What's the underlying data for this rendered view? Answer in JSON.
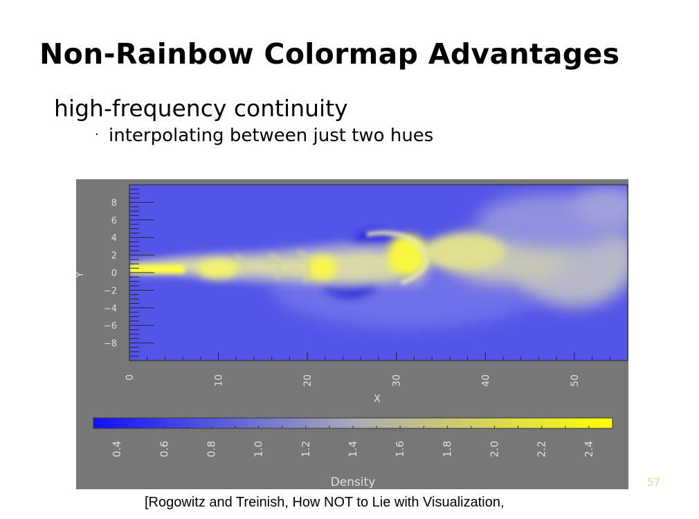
{
  "slide": {
    "title": "Non-Rainbow Colormap Advantages",
    "subtitle": "high-frequency continuity",
    "bullet": "interpolating between just two hues",
    "page_number": "57",
    "citation": "[Rogowitz and Treinish, How NOT to Lie with Visualization,"
  },
  "colors": {
    "figure_background": "#777777",
    "field_low": "#5454e8",
    "field_high": "#ffff30",
    "colormap_start": "#1010ff",
    "colormap_end": "#ffff00"
  },
  "chart_data": {
    "type": "heatmap",
    "xlabel": "X",
    "ylabel": "Y",
    "colorbar_label": "Density",
    "xlim": [
      0,
      56
    ],
    "ylim": [
      -10,
      10
    ],
    "x_ticks": [
      "0",
      "10",
      "20",
      "30",
      "40",
      "50"
    ],
    "y_ticks": [
      "8",
      "6",
      "4",
      "2",
      "0",
      "−2",
      "−4",
      "−6",
      "−8"
    ],
    "colorbar_ticks": [
      "0.4",
      "0.6",
      "0.8",
      "1.0",
      "1.2",
      "1.4",
      "1.6",
      "1.8",
      "2.0",
      "2.2",
      "2.4"
    ],
    "colorbar_range": [
      0.3,
      2.5
    ],
    "colormap": "blue-to-yellow"
  }
}
